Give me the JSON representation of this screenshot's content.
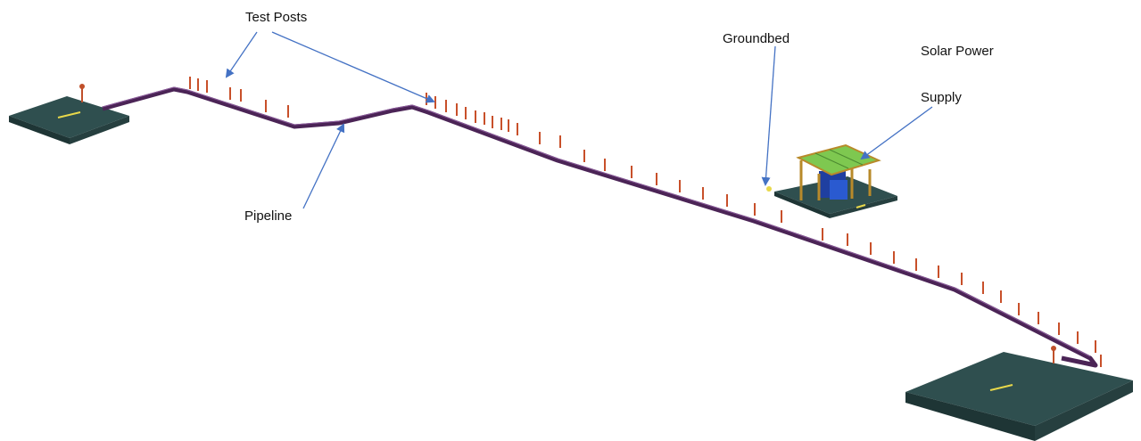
{
  "labels": {
    "test_posts": "Test Posts",
    "groundbed": "Groundbed",
    "solar_power": "Solar Power",
    "supply": "Supply",
    "pipeline": "Pipeline"
  }
}
